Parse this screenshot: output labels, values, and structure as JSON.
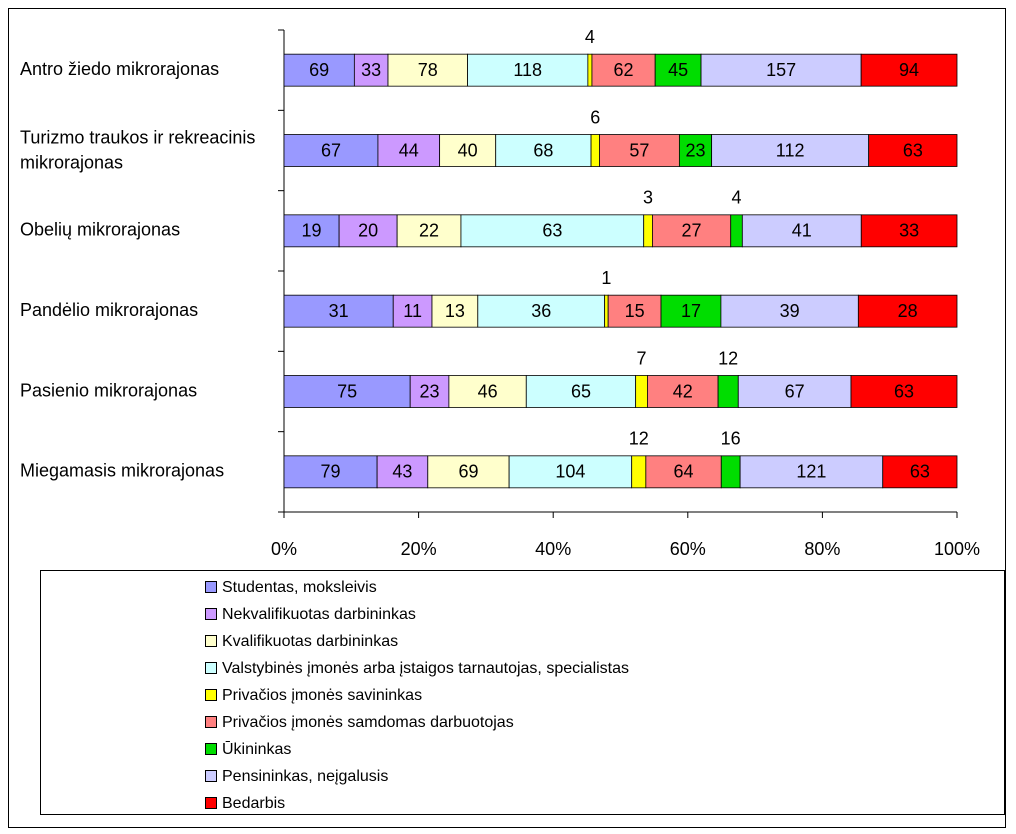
{
  "chart_data": {
    "type": "bar",
    "orientation": "horizontal",
    "stacked": "percent",
    "categories": [
      "Antro žiedo mikrorajonas",
      "Turizmo traukos ir rekreacinis mikrorajonas",
      "Obelių mikrorajonas",
      "Pandėlio mikrorajonas",
      "Pasienio mikrorajonas",
      "Miegamasis mikrorajonas"
    ],
    "series": [
      {
        "name": "Studentas, moksleivis",
        "color": "#9999ff",
        "values": [
          69,
          67,
          19,
          31,
          75,
          79
        ]
      },
      {
        "name": "Nekvalifikuotas darbininkas",
        "color": "#cc99ff",
        "values": [
          33,
          44,
          20,
          11,
          23,
          43
        ]
      },
      {
        "name": "Kvalifikuotas darbininkas",
        "color": "#ffffcc",
        "values": [
          78,
          40,
          22,
          13,
          46,
          69
        ]
      },
      {
        "name": "Valstybinės įmonės arba įstaigos tarnautojas, specialistas",
        "color": "#ccffff",
        "values": [
          118,
          68,
          63,
          36,
          65,
          104
        ]
      },
      {
        "name": "Privačios įmonės savininkas",
        "color": "#ffff00",
        "values": [
          4,
          6,
          3,
          1,
          7,
          12
        ]
      },
      {
        "name": "Privačios įmonės samdomas darbuotojas",
        "color": "#ff8080",
        "values": [
          62,
          57,
          27,
          15,
          42,
          64
        ]
      },
      {
        "name": "Ūkininkas",
        "color": "#00dd00",
        "values": [
          45,
          23,
          4,
          17,
          12,
          16
        ]
      },
      {
        "name": "Pensininkas, neįgalusis",
        "color": "#ccccff",
        "values": [
          157,
          112,
          41,
          39,
          67,
          121
        ]
      },
      {
        "name": "Bedarbis",
        "color": "#ff0000",
        "values": [
          94,
          63,
          33,
          28,
          63,
          63
        ]
      }
    ],
    "xlim": [
      0,
      100
    ],
    "xticks": [
      {
        "value": 0,
        "label": "0%"
      },
      {
        "value": 20,
        "label": "20%"
      },
      {
        "value": 40,
        "label": "40%"
      },
      {
        "value": 60,
        "label": "60%"
      },
      {
        "value": 80,
        "label": "80%"
      },
      {
        "value": 100,
        "label": "100%"
      }
    ]
  }
}
